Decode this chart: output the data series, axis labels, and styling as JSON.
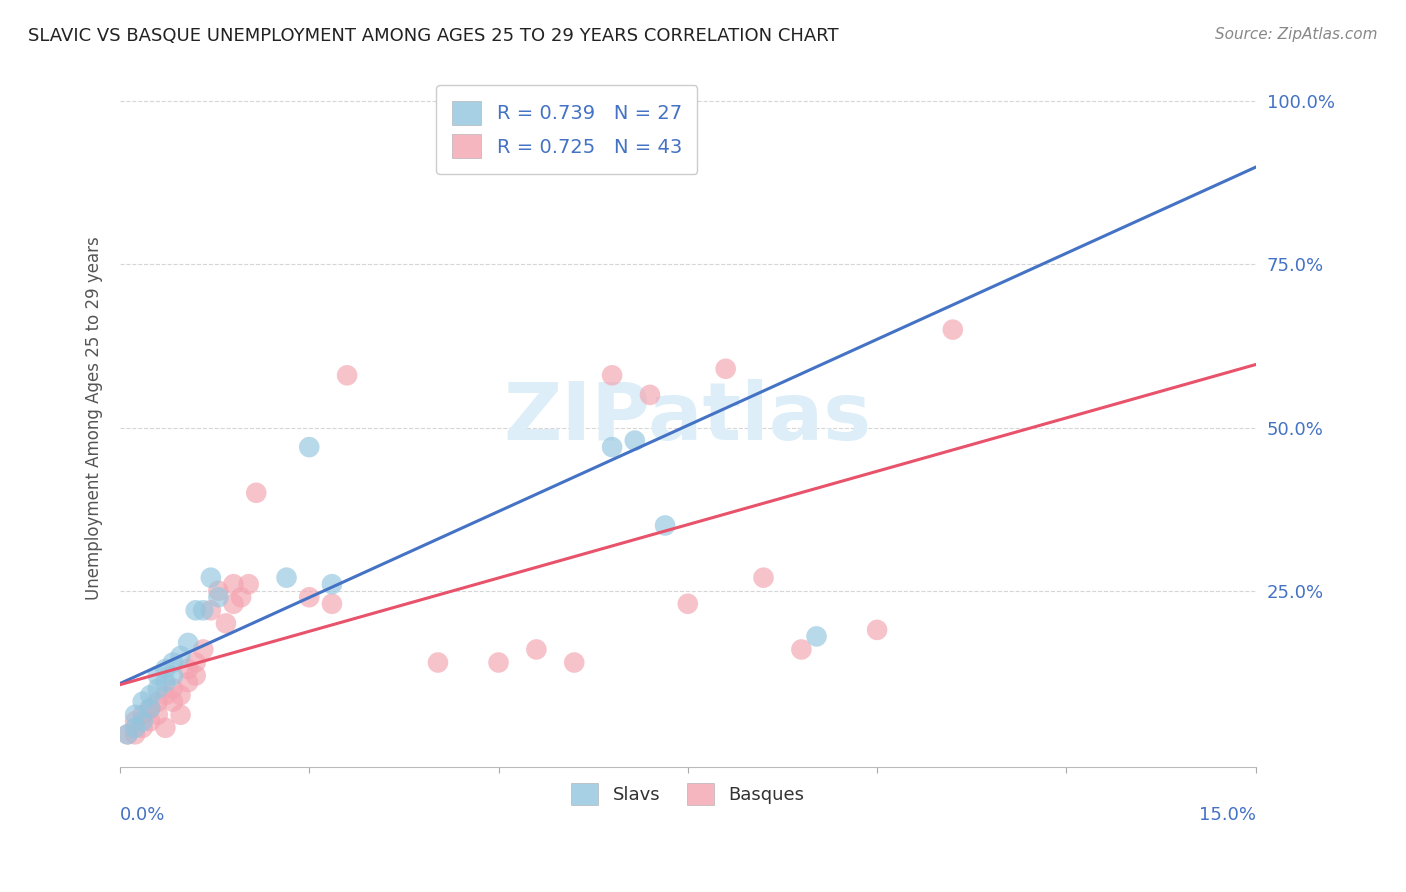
{
  "title": "SLAVIC VS BASQUE UNEMPLOYMENT AMONG AGES 25 TO 29 YEARS CORRELATION CHART",
  "source": "Source: ZipAtlas.com",
  "ylabel": "Unemployment Among Ages 25 to 29 years",
  "xlim": [
    0.0,
    0.15
  ],
  "ylim": [
    -0.02,
    1.05
  ],
  "legend_slavs_r": "R = 0.739",
  "legend_slavs_n": "N = 27",
  "legend_basques_r": "R = 0.725",
  "legend_basques_n": "N = 43",
  "slavs_color": "#92c5de",
  "basques_color": "#f4a4b0",
  "trend_slavs_color": "#4472c4",
  "trend_basques_color": "#e8526a",
  "slavs_x": [
    0.001,
    0.002,
    0.002,
    0.003,
    0.003,
    0.004,
    0.004,
    0.005,
    0.005,
    0.006,
    0.006,
    0.007,
    0.007,
    0.008,
    0.009,
    0.01,
    0.011,
    0.012,
    0.013,
    0.022,
    0.025,
    0.028,
    0.065,
    0.068,
    0.072,
    0.075,
    0.092
  ],
  "slavs_y": [
    0.03,
    0.04,
    0.06,
    0.05,
    0.08,
    0.07,
    0.09,
    0.1,
    0.12,
    0.11,
    0.13,
    0.12,
    0.14,
    0.15,
    0.17,
    0.22,
    0.22,
    0.27,
    0.24,
    0.27,
    0.47,
    0.26,
    0.47,
    0.48,
    0.35,
    1.0,
    0.18
  ],
  "basques_x": [
    0.001,
    0.002,
    0.002,
    0.003,
    0.003,
    0.004,
    0.004,
    0.005,
    0.005,
    0.006,
    0.006,
    0.007,
    0.007,
    0.008,
    0.008,
    0.009,
    0.009,
    0.01,
    0.01,
    0.011,
    0.012,
    0.013,
    0.014,
    0.015,
    0.015,
    0.016,
    0.017,
    0.018,
    0.025,
    0.028,
    0.03,
    0.042,
    0.05,
    0.055,
    0.06,
    0.065,
    0.07,
    0.075,
    0.08,
    0.085,
    0.09,
    0.1,
    0.11
  ],
  "basques_y": [
    0.03,
    0.03,
    0.05,
    0.04,
    0.06,
    0.05,
    0.07,
    0.06,
    0.08,
    0.09,
    0.04,
    0.1,
    0.08,
    0.09,
    0.06,
    0.13,
    0.11,
    0.14,
    0.12,
    0.16,
    0.22,
    0.25,
    0.2,
    0.23,
    0.26,
    0.24,
    0.26,
    0.4,
    0.24,
    0.23,
    0.58,
    0.14,
    0.14,
    0.16,
    0.14,
    0.58,
    0.55,
    0.23,
    0.59,
    0.27,
    0.16,
    0.19,
    0.65
  ],
  "background_color": "#ffffff",
  "grid_color": "#cccccc",
  "tick_color": "#4472c4",
  "title_color": "#222222",
  "watermark_color": "#ddeef8"
}
